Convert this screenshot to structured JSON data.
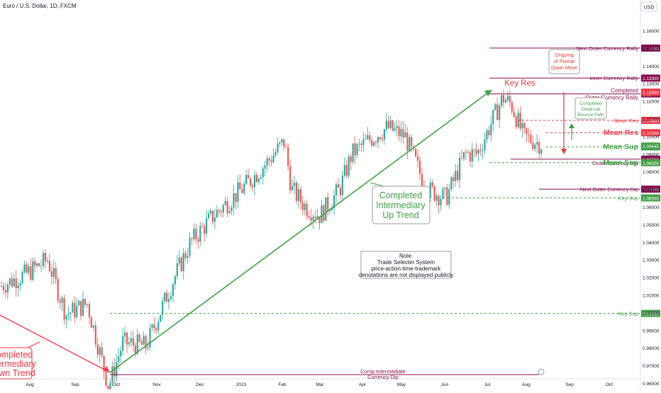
{
  "header": {
    "title": "Euro / U.S. Dollar, 1D, FXCM",
    "currency": "USD"
  },
  "chart_data": {
    "type": "candlestick",
    "ylim": [
      0.9475,
      1.17
    ],
    "y_ticks": [
      "1.16000",
      "1.15000",
      "1.14000",
      "1.13000",
      "1.12000",
      "1.11000",
      "1.10000",
      "1.09000",
      "1.08000",
      "1.07000",
      "1.06000",
      "1.05000",
      "1.04000",
      "1.03000",
      "1.02000",
      "1.01000",
      "1.00000",
      "0.99000",
      "0.98000",
      "0.97000",
      "0.96000"
    ],
    "x_ticks": [
      "Aug",
      "Sep",
      "Oct",
      "Nov",
      "Dec",
      "2023",
      "Feb",
      "Mar",
      "Apr",
      "May",
      "Jun",
      "Jul",
      "Aug",
      "Sep",
      "Oct"
    ],
    "colors": {
      "up": "#26a69a",
      "down": "#ef5350",
      "resistance": "#880e4f",
      "support": "#43a047",
      "trend": "#43a047",
      "alert": "#e53935"
    },
    "candles_anchor": [
      [
        "Jul 10",
        1.015
      ],
      [
        "Jul 25",
        1.022
      ],
      [
        "Aug 10",
        1.03
      ],
      [
        "Aug 25",
        0.999
      ],
      [
        "Sep 10",
        1.005
      ],
      [
        "Sep 27",
        0.958
      ],
      [
        "Oct 5",
        0.983
      ],
      [
        "Oct 20",
        0.981
      ],
      [
        "Nov 10",
        1.02
      ],
      [
        "Nov 25",
        1.04
      ],
      [
        "Dec 10",
        1.055
      ],
      [
        "Jan 1",
        1.07
      ],
      [
        "Jan 20",
        1.085
      ],
      [
        "Feb 2",
        1.097
      ],
      [
        "Feb 10",
        1.07
      ],
      [
        "Feb 25",
        1.06
      ],
      [
        "Mar 10",
        1.055
      ],
      [
        "Mar 20",
        1.07
      ],
      [
        "Apr 1",
        1.09
      ],
      [
        "Apr 15",
        1.098
      ],
      [
        "Apr 28",
        1.105
      ],
      [
        "May 10",
        1.1
      ],
      [
        "May 30",
        1.07
      ],
      [
        "Jun 10",
        1.065
      ],
      [
        "Jun 25",
        1.09
      ],
      [
        "Jul 5",
        1.09
      ],
      [
        "Jul 14",
        1.122
      ],
      [
        "Jul 22",
        1.118
      ],
      [
        "Aug 1",
        1.1
      ],
      [
        "Aug 9",
        1.098
      ],
      [
        "Aug 16",
        1.095
      ]
    ],
    "levels": [
      {
        "label": "Next Outer Currency Rally",
        "value": "1.15000",
        "y": 1.15,
        "kind": "resistance"
      },
      {
        "label": "Inner Currency Rally",
        "value": "1.13300",
        "y": 1.133,
        "kind": "resistance"
      },
      {
        "label": "Completed Outer Currency Rally",
        "value": "1.12400",
        "y": 1.124,
        "kind": "resistance"
      },
      {
        "label": "Mean Res",
        "value": "1.10900",
        "y": 1.109,
        "kind": "alert"
      },
      {
        "label": "Mean Res",
        "value": "1.10200",
        "y": 1.102,
        "kind": "alert"
      },
      {
        "label": "Mean Sup",
        "value": "1.09400",
        "y": 1.094,
        "kind": "support"
      },
      {
        "label": "Outer Currency Dip",
        "value": "1.08700",
        "y": 1.087,
        "kind": "resistance"
      },
      {
        "label": "Mean Sup",
        "value": "1.08500",
        "y": 1.085,
        "kind": "support"
      },
      {
        "label": "Next Outer Currency Dip",
        "value": "1.07000",
        "y": 1.07,
        "kind": "resistance"
      },
      {
        "label": "Key Sup",
        "value": "1.06500",
        "y": 1.065,
        "kind": "support"
      },
      {
        "label": "Key Sup",
        "value": "0.99950",
        "y": 0.9995,
        "kind": "support"
      }
    ],
    "badges": [
      {
        "value": "1.12500",
        "y": 1.125,
        "kind": "alert"
      },
      {
        "value": "1.09445",
        "y": 1.09445,
        "kind": "support"
      }
    ],
    "annotations": {
      "key_res": "Key Res",
      "completed_up": [
        "Completed",
        "Intermediary",
        "Up Trend"
      ],
      "completed_down": [
        "Completed",
        "Intermediary",
        "Down Trend"
      ],
      "pivotal": [
        "Ongoing",
        "of Pivotal",
        "Down Move"
      ],
      "bounce": [
        "Completed",
        "Dead-cat",
        "Bounce Path"
      ],
      "note": [
        "Note:",
        "Trade Selecter System",
        "price-action-time-trademark",
        "denotations are not displayed publicly"
      ],
      "comp_dip": [
        "Comp Intermediate",
        "Currency Dip"
      ]
    }
  }
}
